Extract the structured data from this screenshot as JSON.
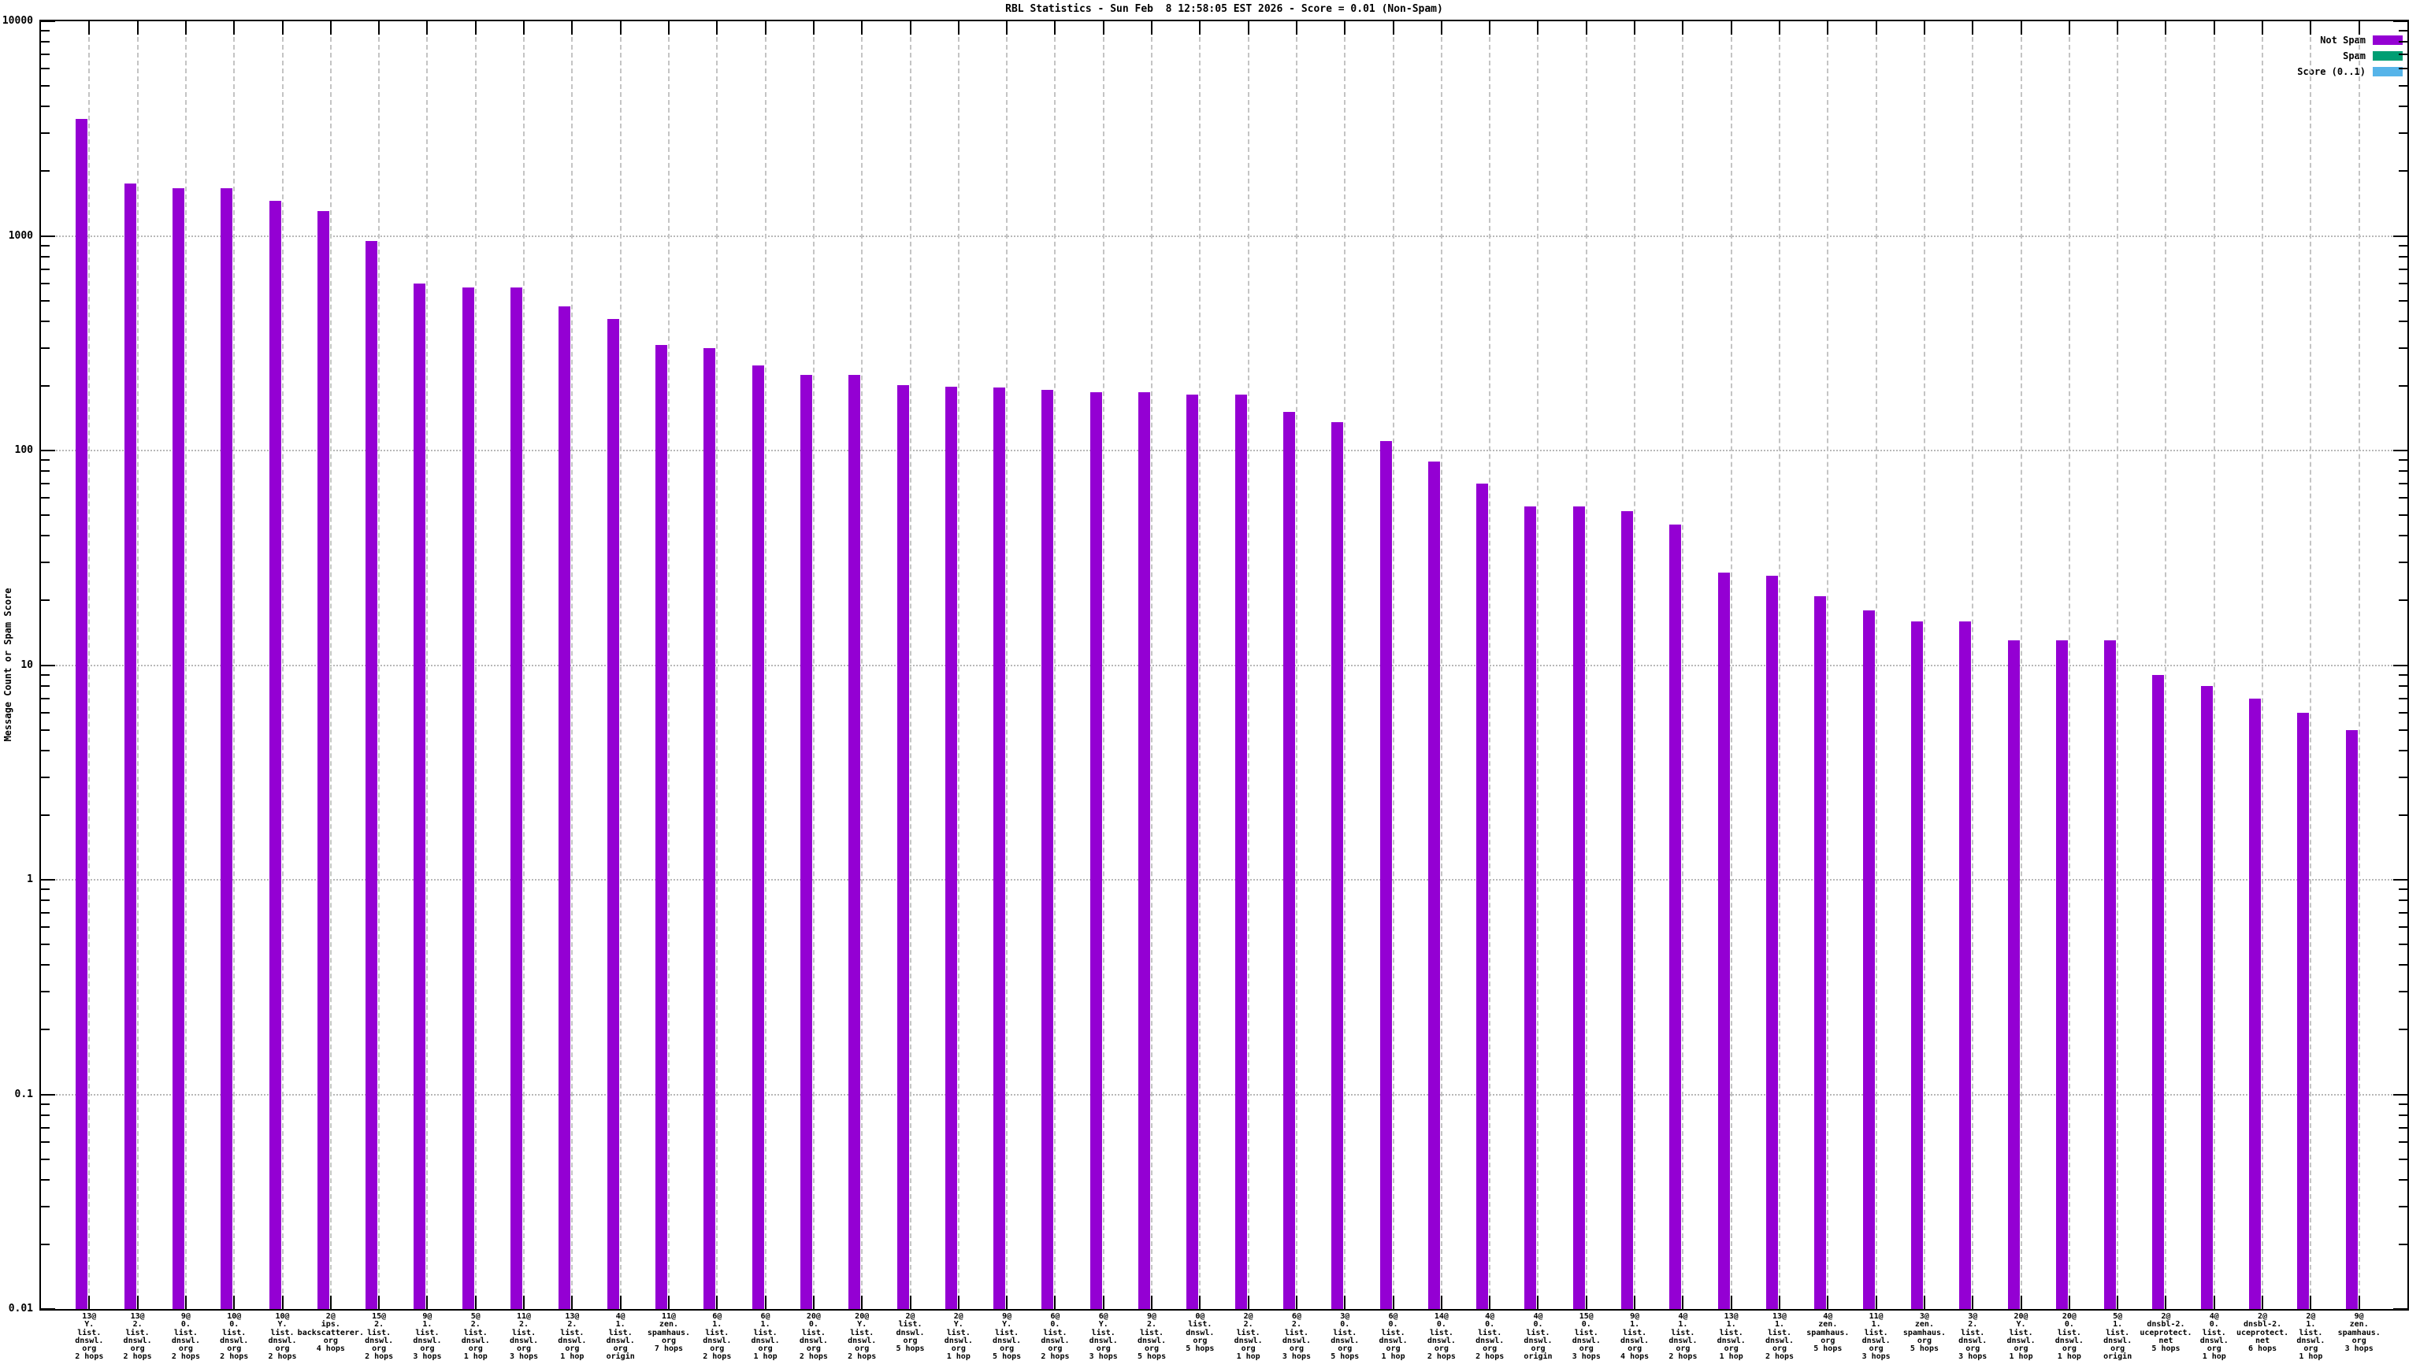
{
  "title": "RBL Statistics - Sun Feb  8 12:58:05 EST 2026 - Score = 0.01 (Non-Spam)",
  "colors": {
    "not_spam": "#9400D3",
    "spam": "#009E73",
    "score": "#56B4E9",
    "grid": "#BCBCBC",
    "axis": "#000000",
    "background": "#FFFFFF"
  },
  "chart_data": {
    "type": "bar",
    "title": "RBL Statistics - Sun Feb  8 12:58:05 EST 2026 - Score = 0.01 (Non-Spam)",
    "xlabel": "",
    "ylabel": "Message Count or Spam Score",
    "yscale": "log",
    "ylim": [
      0.01,
      10000
    ],
    "ytick_labels": [
      "10000",
      "1000",
      "100",
      "10",
      "1",
      "0.1",
      "0.01"
    ],
    "grid": true,
    "legend_position": "top-right",
    "categories": [
      [
        "13@",
        "Y.",
        "list.",
        "dnswl.",
        "org",
        "2 hops"
      ],
      [
        "13@",
        "2.",
        "list.",
        "dnswl.",
        "org",
        "2 hops"
      ],
      [
        "9@",
        "0.",
        "list.",
        "dnswl.",
        "org",
        "2 hops"
      ],
      [
        "10@",
        "0.",
        "list.",
        "dnswl.",
        "org",
        "2 hops"
      ],
      [
        "10@",
        "Y.",
        "list.",
        "dnswl.",
        "org",
        "2 hops"
      ],
      [
        "2@",
        "ips.",
        "backscatterer.",
        "org",
        "4 hops"
      ],
      [
        "15@",
        "2.",
        "list.",
        "dnswl.",
        "org",
        "2 hops"
      ],
      [
        "9@",
        "1.",
        "list.",
        "dnswl.",
        "org",
        "3 hops"
      ],
      [
        "5@",
        "2.",
        "list.",
        "dnswl.",
        "org",
        "1 hop"
      ],
      [
        "11@",
        "2.",
        "list.",
        "dnswl.",
        "org",
        "3 hops"
      ],
      [
        "13@",
        "2.",
        "list.",
        "dnswl.",
        "org",
        "1 hop"
      ],
      [
        "4@",
        "1.",
        "list.",
        "dnswl.",
        "org",
        "origin"
      ],
      [
        "11@",
        "zen.",
        "spamhaus.",
        "org",
        "7 hops"
      ],
      [
        "6@",
        "1.",
        "list.",
        "dnswl.",
        "org",
        "2 hops"
      ],
      [
        "6@",
        "1.",
        "list.",
        "dnswl.",
        "org",
        "1 hop"
      ],
      [
        "20@",
        "0.",
        "list.",
        "dnswl.",
        "org",
        "2 hops"
      ],
      [
        "20@",
        "Y.",
        "list.",
        "dnswl.",
        "org",
        "2 hops"
      ],
      [
        "2@",
        "list.",
        "dnswl.",
        "org",
        "5 hops"
      ],
      [
        "2@",
        "Y.",
        "list.",
        "dnswl.",
        "org",
        "1 hop"
      ],
      [
        "9@",
        "Y.",
        "list.",
        "dnswl.",
        "org",
        "5 hops"
      ],
      [
        "6@",
        "0.",
        "list.",
        "dnswl.",
        "org",
        "2 hops"
      ],
      [
        "6@",
        "Y.",
        "list.",
        "dnswl.",
        "org",
        "3 hops"
      ],
      [
        "9@",
        "2.",
        "list.",
        "dnswl.",
        "org",
        "5 hops"
      ],
      [
        "0@",
        "list.",
        "dnswl.",
        "org",
        "5 hops"
      ],
      [
        "2@",
        "2.",
        "list.",
        "dnswl.",
        "org",
        "1 hop"
      ],
      [
        "6@",
        "2.",
        "list.",
        "dnswl.",
        "org",
        "3 hops"
      ],
      [
        "3@",
        "0.",
        "list.",
        "dnswl.",
        "org",
        "5 hops"
      ],
      [
        "6@",
        "0.",
        "list.",
        "dnswl.",
        "org",
        "1 hop"
      ],
      [
        "14@",
        "0.",
        "list.",
        "dnswl.",
        "org",
        "2 hops"
      ],
      [
        "4@",
        "0.",
        "list.",
        "dnswl.",
        "org",
        "2 hops"
      ],
      [
        "4@",
        "0.",
        "list.",
        "dnswl.",
        "org",
        "origin"
      ],
      [
        "15@",
        "0.",
        "list.",
        "dnswl.",
        "org",
        "3 hops"
      ],
      [
        "9@",
        "1.",
        "list.",
        "dnswl.",
        "org",
        "4 hops"
      ],
      [
        "4@",
        "1.",
        "list.",
        "dnswl.",
        "org",
        "2 hops"
      ],
      [
        "13@",
        "1.",
        "list.",
        "dnswl.",
        "org",
        "1 hop"
      ],
      [
        "13@",
        "1.",
        "list.",
        "dnswl.",
        "org",
        "2 hops"
      ],
      [
        "4@",
        "zen.",
        "spamhaus.",
        "org",
        "5 hops"
      ],
      [
        "11@",
        "1.",
        "list.",
        "dnswl.",
        "org",
        "3 hops"
      ],
      [
        "3@",
        "zen.",
        "spamhaus.",
        "org",
        "5 hops"
      ],
      [
        "3@",
        "2.",
        "list.",
        "dnswl.",
        "org",
        "3 hops"
      ],
      [
        "20@",
        "Y.",
        "list.",
        "dnswl.",
        "org",
        "1 hop"
      ],
      [
        "20@",
        "0.",
        "list.",
        "dnswl.",
        "org",
        "1 hop"
      ],
      [
        "5@",
        "1.",
        "list.",
        "dnswl.",
        "org",
        "origin"
      ],
      [
        "2@",
        "dnsbl-2.",
        "uceprotect.",
        "net",
        "5 hops"
      ],
      [
        "4@",
        "0.",
        "list.",
        "dnswl.",
        "org",
        "1 hop"
      ],
      [
        "2@",
        "dnsbl-2.",
        "uceprotect.",
        "net",
        "6 hops"
      ],
      [
        "2@",
        "1.",
        "list.",
        "dnswl.",
        "org",
        "1 hop"
      ],
      [
        "9@",
        "zen.",
        "spamhaus.",
        "org",
        "3 hops"
      ]
    ],
    "series": [
      {
        "name": "Not Spam",
        "color": "#9400D3",
        "values": [
          3500,
          1750,
          1670,
          1670,
          1460,
          1310,
          950,
          600,
          575,
          575,
          470,
          410,
          310,
          300,
          250,
          225,
          225,
          202,
          199,
          197,
          191,
          187,
          187,
          182,
          182,
          151,
          136,
          111,
          89,
          70,
          55,
          55,
          52,
          45,
          27,
          26,
          21,
          18,
          16,
          16,
          13,
          13,
          13,
          9,
          8,
          7,
          6,
          5
        ]
      },
      {
        "name": "Spam",
        "color": "#009E73",
        "values": []
      },
      {
        "name": "Score (0..1)",
        "color": "#56B4E9",
        "values": []
      }
    ]
  }
}
